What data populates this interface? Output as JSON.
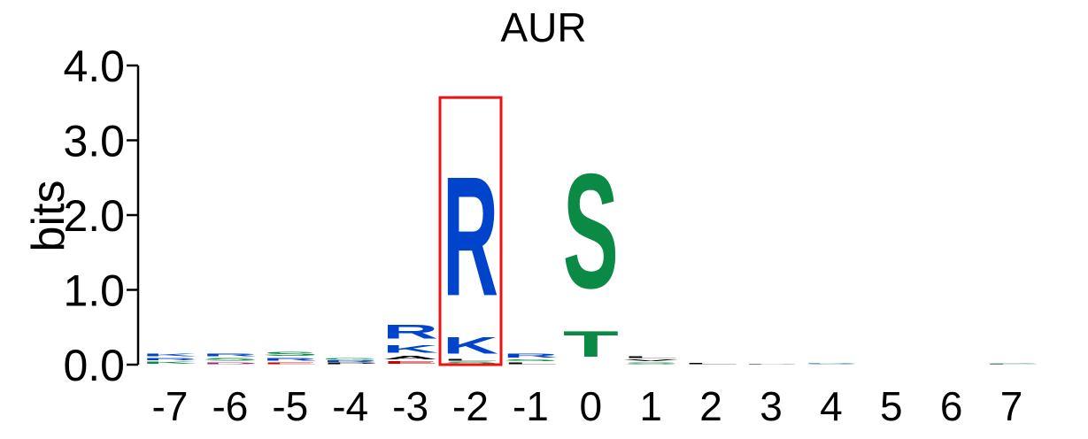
{
  "chart_data": {
    "type": "sequence-logo",
    "title": "AUR",
    "ylabel": "bits",
    "ylim": [
      0,
      4
    ],
    "y_ticks": [
      "0.0",
      "1.0",
      "2.0",
      "3.0",
      "4.0"
    ],
    "positions": [
      "-7",
      "-6",
      "-5",
      "-4",
      "-3",
      "-2",
      "-1",
      "0",
      "1",
      "2",
      "3",
      "4",
      "5",
      "6",
      "7"
    ],
    "highlighted_position": "-2",
    "colors": {
      "basic": "#0044cc",
      "polar": "#0a8a44",
      "hydrophobic": "#000000",
      "acidic": "#cc0000",
      "other": "#aa2277",
      "highlight": "#ee1111"
    },
    "columns": [
      {
        "position": "-7",
        "stack": [
          {
            "letter": "K",
            "color": "polar",
            "bits": 0.05
          },
          {
            "letter": "R",
            "color": "basic",
            "bits": 0.05
          },
          {
            "letter": "K",
            "color": "basic",
            "bits": 0.06
          }
        ]
      },
      {
        "position": "-6",
        "stack": [
          {
            "letter": "D",
            "color": "other",
            "bits": 0.04
          },
          {
            "letter": "S",
            "color": "polar",
            "bits": 0.06
          },
          {
            "letter": "R",
            "color": "basic",
            "bits": 0.06
          }
        ]
      },
      {
        "position": "-5",
        "stack": [
          {
            "letter": "E",
            "color": "acidic",
            "bits": 0.04
          },
          {
            "letter": "R",
            "color": "basic",
            "bits": 0.06
          },
          {
            "letter": "S",
            "color": "polar",
            "bits": 0.08
          }
        ]
      },
      {
        "position": "-4",
        "stack": [
          {
            "letter": "P",
            "color": "hydrophobic",
            "bits": 0.03
          },
          {
            "letter": "R",
            "color": "basic",
            "bits": 0.03
          },
          {
            "letter": "G",
            "color": "polar",
            "bits": 0.04
          }
        ]
      },
      {
        "position": "-3",
        "stack": [
          {
            "letter": "E",
            "color": "acidic",
            "bits": 0.06
          },
          {
            "letter": "A",
            "color": "hydrophobic",
            "bits": 0.07
          },
          {
            "letter": "K",
            "color": "basic",
            "bits": 0.16
          },
          {
            "letter": "R",
            "color": "basic",
            "bits": 0.3
          }
        ]
      },
      {
        "position": "-2",
        "stack": [
          {
            "letter": "S",
            "color": "polar",
            "bits": 0.05
          },
          {
            "letter": "L",
            "color": "hydrophobic",
            "bits": 0.03
          },
          {
            "letter": "K",
            "color": "basic",
            "bits": 0.35
          },
          {
            "letter": "R",
            "color": "basic",
            "bits": 2.55
          }
        ]
      },
      {
        "position": "-1",
        "stack": [
          {
            "letter": "L",
            "color": "hydrophobic",
            "bits": 0.04
          },
          {
            "letter": "S",
            "color": "polar",
            "bits": 0.04
          },
          {
            "letter": "R",
            "color": "basic",
            "bits": 0.08
          }
        ]
      },
      {
        "position": "0",
        "stack": [
          {
            "letter": "T",
            "color": "polar",
            "bits": 0.55
          },
          {
            "letter": "S",
            "color": "polar",
            "bits": 2.45
          }
        ]
      },
      {
        "position": "1",
        "stack": [
          {
            "letter": "S",
            "color": "polar",
            "bits": 0.04
          },
          {
            "letter": "V",
            "color": "hydrophobic",
            "bits": 0.04
          },
          {
            "letter": "L",
            "color": "hydrophobic",
            "bits": 0.03
          }
        ]
      },
      {
        "position": "2",
        "stack": [
          {
            "letter": "L",
            "color": "hydrophobic",
            "bits": 0.02
          }
        ]
      },
      {
        "position": "3",
        "stack": [
          {
            "letter": "P",
            "color": "hydrophobic",
            "bits": 0.015
          }
        ]
      },
      {
        "position": "4",
        "stack": [
          {
            "letter": "S",
            "color": "polar",
            "bits": 0.015
          },
          {
            "letter": "R",
            "color": "basic",
            "bits": 0.015
          }
        ]
      },
      {
        "position": "5",
        "stack": []
      },
      {
        "position": "6",
        "stack": []
      },
      {
        "position": "7",
        "stack": [
          {
            "letter": "L",
            "color": "hydrophobic",
            "bits": 0.015
          },
          {
            "letter": "S",
            "color": "polar",
            "bits": 0.015
          }
        ]
      }
    ]
  }
}
